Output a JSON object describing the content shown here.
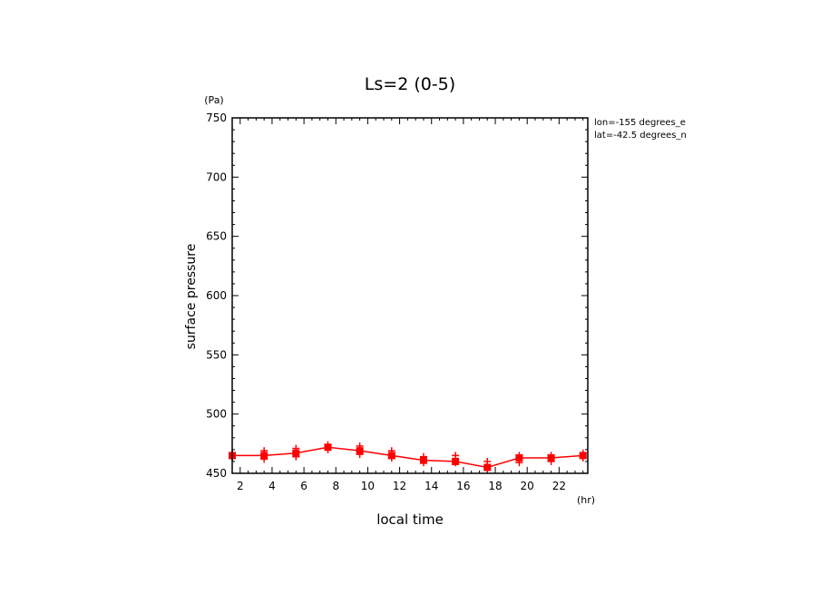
{
  "chart_data": {
    "type": "line",
    "title": "Ls=2 (0-5)",
    "xlabel": "local time",
    "ylabel": "surface pressure",
    "x_unit": "(hr)",
    "y_unit": "(Pa)",
    "xlim": [
      1.5,
      23.8
    ],
    "ylim": [
      450,
      750
    ],
    "x_ticks": [
      2,
      4,
      6,
      8,
      10,
      12,
      14,
      16,
      18,
      20,
      22
    ],
    "y_ticks": [
      450,
      500,
      550,
      600,
      650,
      700,
      750
    ],
    "annotations": [
      "lon=-155 degrees_e",
      "lat=-42.5 degrees_n"
    ],
    "color": "#ff0000",
    "series": [
      {
        "x": [
          1.5,
          3.5,
          5.5,
          7.5,
          9.5,
          11.5,
          13.5,
          15.5,
          17.5,
          19.5,
          21.5,
          23.5
        ],
        "values": [
          465,
          465,
          467,
          472,
          469,
          465,
          461,
          460,
          455,
          463,
          463,
          465
        ]
      }
    ],
    "scatter": {
      "x": [
        1.5,
        1.5,
        3.5,
        3.5,
        3.5,
        5.5,
        5.5,
        5.5,
        7.5,
        7.5,
        9.5,
        9.5,
        9.5,
        11.5,
        11.5,
        11.5,
        13.5,
        13.5,
        15.5,
        15.5,
        17.5,
        17.5,
        19.5,
        19.5,
        21.5,
        21.5,
        23.5,
        23.5
      ],
      "y": [
        467,
        463,
        469,
        466,
        462,
        471,
        468,
        464,
        474,
        470,
        473,
        470,
        466,
        469,
        466,
        463,
        464,
        459,
        465,
        459,
        460,
        454,
        465,
        459,
        465,
        460,
        467,
        463
      ]
    }
  }
}
